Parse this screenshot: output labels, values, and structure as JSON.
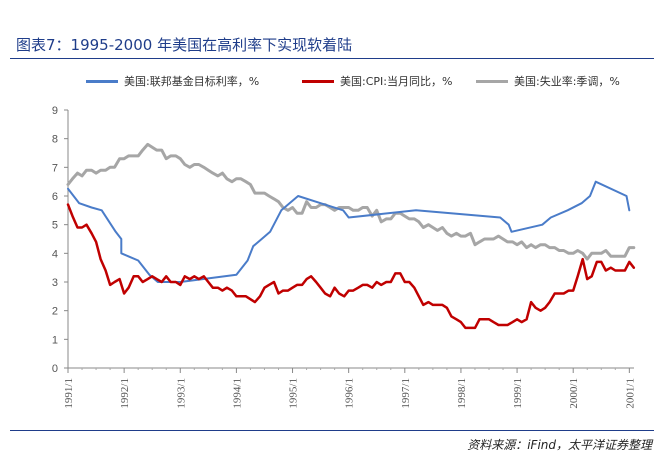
{
  "title": "图表7：1995-2000 年美国在高利率下实现软着陆",
  "source": "资料来源：iFind，太平洋证券整理",
  "chart_data": {
    "type": "line",
    "x_ticks": [
      "1991/1",
      "1992/1",
      "1993/1",
      "1994/1",
      "1995/1",
      "1996/1",
      "1997/1",
      "1998/1",
      "1999/1",
      "2000/1",
      "2001/1"
    ],
    "ylim": [
      0,
      9
    ],
    "y_ticks": [
      "0",
      "1",
      "2",
      "3",
      "4",
      "5",
      "6",
      "7",
      "8",
      "9"
    ],
    "xlim": [
      1991.0,
      2001.083
    ],
    "grid": false,
    "legend_position": "top",
    "series": [
      {
        "name": "美国:联邦基金目标利率，%",
        "color": "#4a7cc9",
        "points": [
          [
            1991.0,
            6.25
          ],
          [
            1991.1,
            6.0
          ],
          [
            1991.2,
            5.75
          ],
          [
            1991.42,
            5.6
          ],
          [
            1991.6,
            5.5
          ],
          [
            1991.85,
            4.75
          ],
          [
            1991.95,
            4.5
          ],
          [
            1991.95,
            4.0
          ],
          [
            1992.25,
            3.75
          ],
          [
            1992.45,
            3.25
          ],
          [
            1992.6,
            3.0
          ],
          [
            1993.0,
            3.0
          ],
          [
            1994.0,
            3.25
          ],
          [
            1994.2,
            3.75
          ],
          [
            1994.3,
            4.25
          ],
          [
            1994.45,
            4.5
          ],
          [
            1994.6,
            4.75
          ],
          [
            1994.8,
            5.5
          ],
          [
            1995.1,
            6.0
          ],
          [
            1995.5,
            5.75
          ],
          [
            1995.9,
            5.5
          ],
          [
            1996.0,
            5.25
          ],
          [
            1997.2,
            5.5
          ],
          [
            1998.7,
            5.25
          ],
          [
            1998.85,
            5.0
          ],
          [
            1998.9,
            4.75
          ],
          [
            1999.45,
            5.0
          ],
          [
            1999.6,
            5.25
          ],
          [
            1999.9,
            5.5
          ],
          [
            2000.15,
            5.75
          ],
          [
            2000.3,
            6.0
          ],
          [
            2000.4,
            6.5
          ],
          [
            2000.95,
            6.0
          ],
          [
            2001.0,
            5.5
          ]
        ]
      },
      {
        "name": "美国:CPI:当月同比，%",
        "color": "#c00000",
        "points": [
          [
            1991.0,
            5.7
          ],
          [
            1991.08,
            5.3
          ],
          [
            1991.17,
            4.9
          ],
          [
            1991.25,
            4.9
          ],
          [
            1991.33,
            5.0
          ],
          [
            1991.42,
            4.7
          ],
          [
            1991.5,
            4.4
          ],
          [
            1991.58,
            3.8
          ],
          [
            1991.67,
            3.4
          ],
          [
            1991.75,
            2.9
          ],
          [
            1991.83,
            3.0
          ],
          [
            1991.92,
            3.1
          ],
          [
            1992.0,
            2.6
          ],
          [
            1992.08,
            2.8
          ],
          [
            1992.17,
            3.2
          ],
          [
            1992.25,
            3.2
          ],
          [
            1992.33,
            3.0
          ],
          [
            1992.42,
            3.1
          ],
          [
            1992.5,
            3.2
          ],
          [
            1992.58,
            3.1
          ],
          [
            1992.67,
            3.0
          ],
          [
            1992.75,
            3.2
          ],
          [
            1992.83,
            3.0
          ],
          [
            1992.92,
            3.0
          ],
          [
            1993.0,
            2.9
          ],
          [
            1993.08,
            3.2
          ],
          [
            1993.17,
            3.1
          ],
          [
            1993.25,
            3.2
          ],
          [
            1993.33,
            3.1
          ],
          [
            1993.42,
            3.2
          ],
          [
            1993.5,
            3.0
          ],
          [
            1993.58,
            2.8
          ],
          [
            1993.67,
            2.8
          ],
          [
            1993.75,
            2.7
          ],
          [
            1993.83,
            2.8
          ],
          [
            1993.92,
            2.7
          ],
          [
            1994.0,
            2.5
          ],
          [
            1994.08,
            2.5
          ],
          [
            1994.17,
            2.5
          ],
          [
            1994.25,
            2.4
          ],
          [
            1994.33,
            2.3
          ],
          [
            1994.42,
            2.5
          ],
          [
            1994.5,
            2.8
          ],
          [
            1994.58,
            2.9
          ],
          [
            1994.67,
            3.0
          ],
          [
            1994.75,
            2.6
          ],
          [
            1994.83,
            2.7
          ],
          [
            1994.92,
            2.7
          ],
          [
            1995.0,
            2.8
          ],
          [
            1995.08,
            2.9
          ],
          [
            1995.17,
            2.9
          ],
          [
            1995.25,
            3.1
          ],
          [
            1995.33,
            3.2
          ],
          [
            1995.42,
            3.0
          ],
          [
            1995.5,
            2.8
          ],
          [
            1995.58,
            2.6
          ],
          [
            1995.67,
            2.5
          ],
          [
            1995.75,
            2.8
          ],
          [
            1995.83,
            2.6
          ],
          [
            1995.92,
            2.5
          ],
          [
            1996.0,
            2.7
          ],
          [
            1996.08,
            2.7
          ],
          [
            1996.17,
            2.8
          ],
          [
            1996.25,
            2.9
          ],
          [
            1996.33,
            2.9
          ],
          [
            1996.42,
            2.8
          ],
          [
            1996.5,
            3.0
          ],
          [
            1996.58,
            2.9
          ],
          [
            1996.67,
            3.0
          ],
          [
            1996.75,
            3.0
          ],
          [
            1996.83,
            3.3
          ],
          [
            1996.92,
            3.3
          ],
          [
            1997.0,
            3.0
          ],
          [
            1997.08,
            3.0
          ],
          [
            1997.17,
            2.8
          ],
          [
            1997.25,
            2.5
          ],
          [
            1997.33,
            2.2
          ],
          [
            1997.42,
            2.3
          ],
          [
            1997.5,
            2.2
          ],
          [
            1997.58,
            2.2
          ],
          [
            1997.67,
            2.2
          ],
          [
            1997.75,
            2.1
          ],
          [
            1997.83,
            1.8
          ],
          [
            1997.92,
            1.7
          ],
          [
            1998.0,
            1.6
          ],
          [
            1998.08,
            1.4
          ],
          [
            1998.17,
            1.4
          ],
          [
            1998.25,
            1.4
          ],
          [
            1998.33,
            1.7
          ],
          [
            1998.42,
            1.7
          ],
          [
            1998.5,
            1.7
          ],
          [
            1998.58,
            1.6
          ],
          [
            1998.67,
            1.5
          ],
          [
            1998.75,
            1.5
          ],
          [
            1998.83,
            1.5
          ],
          [
            1998.92,
            1.6
          ],
          [
            1999.0,
            1.7
          ],
          [
            1999.08,
            1.6
          ],
          [
            1999.17,
            1.7
          ],
          [
            1999.25,
            2.3
          ],
          [
            1999.33,
            2.1
          ],
          [
            1999.42,
            2.0
          ],
          [
            1999.5,
            2.1
          ],
          [
            1999.58,
            2.3
          ],
          [
            1999.67,
            2.6
          ],
          [
            1999.75,
            2.6
          ],
          [
            1999.83,
            2.6
          ],
          [
            1999.92,
            2.7
          ],
          [
            2000.0,
            2.7
          ],
          [
            2000.08,
            3.2
          ],
          [
            2000.17,
            3.8
          ],
          [
            2000.25,
            3.1
          ],
          [
            2000.33,
            3.2
          ],
          [
            2000.42,
            3.7
          ],
          [
            2000.5,
            3.7
          ],
          [
            2000.58,
            3.4
          ],
          [
            2000.67,
            3.5
          ],
          [
            2000.75,
            3.4
          ],
          [
            2000.83,
            3.4
          ],
          [
            2000.92,
            3.4
          ],
          [
            2001.0,
            3.7
          ],
          [
            2001.08,
            3.5
          ]
        ]
      },
      {
        "name": "美国:失业率:季调，%",
        "color": "#a6a6a6",
        "points": [
          [
            1991.0,
            6.4
          ],
          [
            1991.08,
            6.6
          ],
          [
            1991.17,
            6.8
          ],
          [
            1991.25,
            6.7
          ],
          [
            1991.33,
            6.9
          ],
          [
            1991.42,
            6.9
          ],
          [
            1991.5,
            6.8
          ],
          [
            1991.58,
            6.9
          ],
          [
            1991.67,
            6.9
          ],
          [
            1991.75,
            7.0
          ],
          [
            1991.83,
            7.0
          ],
          [
            1991.92,
            7.3
          ],
          [
            1992.0,
            7.3
          ],
          [
            1992.08,
            7.4
          ],
          [
            1992.17,
            7.4
          ],
          [
            1992.25,
            7.4
          ],
          [
            1992.33,
            7.6
          ],
          [
            1992.42,
            7.8
          ],
          [
            1992.5,
            7.7
          ],
          [
            1992.58,
            7.6
          ],
          [
            1992.67,
            7.6
          ],
          [
            1992.75,
            7.3
          ],
          [
            1992.83,
            7.4
          ],
          [
            1992.92,
            7.4
          ],
          [
            1993.0,
            7.3
          ],
          [
            1993.08,
            7.1
          ],
          [
            1993.17,
            7.0
          ],
          [
            1993.25,
            7.1
          ],
          [
            1993.33,
            7.1
          ],
          [
            1993.42,
            7.0
          ],
          [
            1993.5,
            6.9
          ],
          [
            1993.58,
            6.8
          ],
          [
            1993.67,
            6.7
          ],
          [
            1993.75,
            6.8
          ],
          [
            1993.83,
            6.6
          ],
          [
            1993.92,
            6.5
          ],
          [
            1994.0,
            6.6
          ],
          [
            1994.08,
            6.6
          ],
          [
            1994.17,
            6.5
          ],
          [
            1994.25,
            6.4
          ],
          [
            1994.33,
            6.1
          ],
          [
            1994.42,
            6.1
          ],
          [
            1994.5,
            6.1
          ],
          [
            1994.58,
            6.0
          ],
          [
            1994.67,
            5.9
          ],
          [
            1994.75,
            5.8
          ],
          [
            1994.83,
            5.6
          ],
          [
            1994.92,
            5.5
          ],
          [
            1995.0,
            5.6
          ],
          [
            1995.08,
            5.4
          ],
          [
            1995.17,
            5.4
          ],
          [
            1995.25,
            5.8
          ],
          [
            1995.33,
            5.6
          ],
          [
            1995.42,
            5.6
          ],
          [
            1995.5,
            5.7
          ],
          [
            1995.58,
            5.7
          ],
          [
            1995.67,
            5.6
          ],
          [
            1995.75,
            5.5
          ],
          [
            1995.83,
            5.6
          ],
          [
            1995.92,
            5.6
          ],
          [
            1996.0,
            5.6
          ],
          [
            1996.08,
            5.5
          ],
          [
            1996.17,
            5.5
          ],
          [
            1996.25,
            5.6
          ],
          [
            1996.33,
            5.6
          ],
          [
            1996.42,
            5.3
          ],
          [
            1996.5,
            5.5
          ],
          [
            1996.58,
            5.1
          ],
          [
            1996.67,
            5.2
          ],
          [
            1996.75,
            5.2
          ],
          [
            1996.83,
            5.4
          ],
          [
            1996.92,
            5.4
          ],
          [
            1997.0,
            5.3
          ],
          [
            1997.08,
            5.2
          ],
          [
            1997.17,
            5.2
          ],
          [
            1997.25,
            5.1
          ],
          [
            1997.33,
            4.9
          ],
          [
            1997.42,
            5.0
          ],
          [
            1997.5,
            4.9
          ],
          [
            1997.58,
            4.8
          ],
          [
            1997.67,
            4.9
          ],
          [
            1997.75,
            4.7
          ],
          [
            1997.83,
            4.6
          ],
          [
            1997.92,
            4.7
          ],
          [
            1998.0,
            4.6
          ],
          [
            1998.08,
            4.6
          ],
          [
            1998.17,
            4.7
          ],
          [
            1998.25,
            4.3
          ],
          [
            1998.33,
            4.4
          ],
          [
            1998.42,
            4.5
          ],
          [
            1998.5,
            4.5
          ],
          [
            1998.58,
            4.5
          ],
          [
            1998.67,
            4.6
          ],
          [
            1998.75,
            4.5
          ],
          [
            1998.83,
            4.4
          ],
          [
            1998.92,
            4.4
          ],
          [
            1999.0,
            4.3
          ],
          [
            1999.08,
            4.4
          ],
          [
            1999.17,
            4.2
          ],
          [
            1999.25,
            4.3
          ],
          [
            1999.33,
            4.2
          ],
          [
            1999.42,
            4.3
          ],
          [
            1999.5,
            4.3
          ],
          [
            1999.58,
            4.2
          ],
          [
            1999.67,
            4.2
          ],
          [
            1999.75,
            4.1
          ],
          [
            1999.83,
            4.1
          ],
          [
            1999.92,
            4.0
          ],
          [
            2000.0,
            4.0
          ],
          [
            2000.08,
            4.1
          ],
          [
            2000.17,
            4.0
          ],
          [
            2000.25,
            3.8
          ],
          [
            2000.33,
            4.0
          ],
          [
            2000.42,
            4.0
          ],
          [
            2000.5,
            4.0
          ],
          [
            2000.58,
            4.1
          ],
          [
            2000.67,
            3.9
          ],
          [
            2000.75,
            3.9
          ],
          [
            2000.83,
            3.9
          ],
          [
            2000.92,
            3.9
          ],
          [
            2001.0,
            4.2
          ],
          [
            2001.08,
            4.2
          ]
        ]
      }
    ]
  }
}
